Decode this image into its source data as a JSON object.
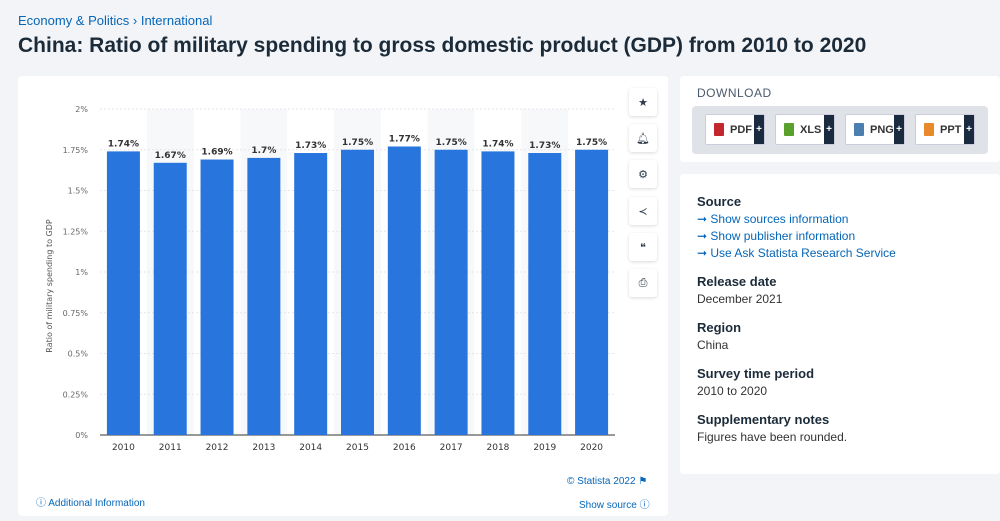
{
  "breadcrumb": [
    "Economy & Politics",
    "International"
  ],
  "title": "China: Ratio of military spending to gross domestic product (GDP) from 2010 to 2020",
  "tools": [
    "star-icon",
    "bell-icon",
    "gear-icon",
    "share-icon",
    "quote-icon",
    "print-icon"
  ],
  "download": {
    "label": "DOWNLOAD",
    "buttons": [
      {
        "label": "PDF",
        "color": "#c4262e"
      },
      {
        "label": "XLS",
        "color": "#5aa02c"
      },
      {
        "label": "PNG",
        "color": "#4a7fb0"
      },
      {
        "label": "PPT",
        "color": "#e8892a"
      }
    ]
  },
  "info": {
    "source_label": "Source",
    "links": [
      "Show sources information",
      "Show publisher information",
      "Use Ask Statista Research Service"
    ],
    "fields": [
      {
        "label": "Release date",
        "value": "December 2021"
      },
      {
        "label": "Region",
        "value": "China"
      },
      {
        "label": "Survey time period",
        "value": "2010 to 2020"
      },
      {
        "label": "Supplementary notes",
        "value": "Figures have been rounded."
      }
    ]
  },
  "footer": {
    "credit": "© Statista 2022",
    "additional": "Additional Information",
    "show_source": "Show source"
  },
  "chart_data": {
    "type": "bar",
    "categories": [
      "2010",
      "2011",
      "2012",
      "2013",
      "2014",
      "2015",
      "2016",
      "2017",
      "2018",
      "2019",
      "2020"
    ],
    "values": [
      1.74,
      1.67,
      1.69,
      1.7,
      1.73,
      1.75,
      1.77,
      1.75,
      1.74,
      1.73,
      1.75
    ],
    "data_labels": [
      "1.74%",
      "1.67%",
      "1.69%",
      "1.7%",
      "1.73%",
      "1.75%",
      "1.77%",
      "1.75%",
      "1.74%",
      "1.73%",
      "1.75%"
    ],
    "ylabel": "Ratio of military spending to GDP",
    "ylim": [
      0,
      2
    ],
    "yticks": [
      "0%",
      "0.25%",
      "0.5%",
      "0.75%",
      "1%",
      "1.25%",
      "1.5%",
      "1.75%",
      "2%"
    ],
    "grid": true,
    "color": "#2876dd"
  }
}
